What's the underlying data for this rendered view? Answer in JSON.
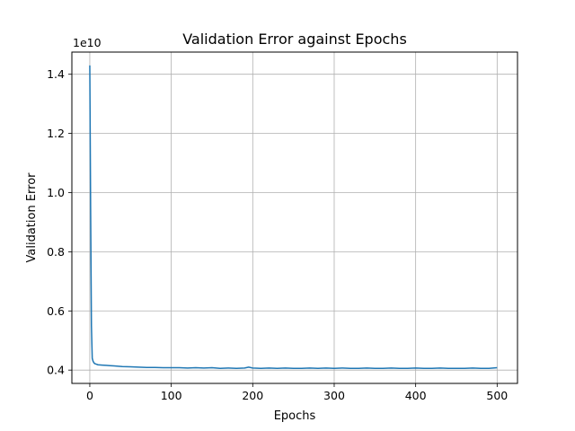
{
  "chart_data": {
    "type": "line",
    "title": "Validation Error against Epochs",
    "xlabel": "Epochs",
    "ylabel": "Validation Error",
    "y_offset_label": "1e10",
    "xlim": [
      -22,
      525
    ],
    "ylim": [
      3.55,
      14.75
    ],
    "x_ticks": [
      0,
      100,
      200,
      300,
      400,
      500
    ],
    "x_tick_labels": [
      "0",
      "100",
      "200",
      "300",
      "400",
      "500"
    ],
    "y_ticks": [
      4.0,
      6.0,
      8.0,
      10.0,
      12.0,
      14.0
    ],
    "y_tick_labels": [
      "0.4",
      "0.6",
      "0.8",
      "1.0",
      "1.2",
      "1.4"
    ],
    "grid": true,
    "series": [
      {
        "color": "#1f77b4",
        "x": [
          0,
          1,
          2,
          3,
          4,
          5,
          6,
          8,
          10,
          15,
          20,
          25,
          30,
          40,
          50,
          60,
          70,
          80,
          90,
          100,
          110,
          120,
          130,
          140,
          150,
          160,
          170,
          180,
          190,
          195,
          200,
          210,
          220,
          230,
          240,
          250,
          260,
          270,
          280,
          290,
          300,
          310,
          320,
          330,
          340,
          350,
          360,
          370,
          380,
          390,
          400,
          410,
          420,
          430,
          440,
          450,
          460,
          470,
          480,
          490,
          500
        ],
        "y": [
          14.3,
          9.5,
          5.5,
          4.4,
          4.3,
          4.25,
          4.22,
          4.2,
          4.18,
          4.17,
          4.16,
          4.15,
          4.14,
          4.12,
          4.11,
          4.1,
          4.09,
          4.09,
          4.08,
          4.08,
          4.08,
          4.07,
          4.08,
          4.07,
          4.08,
          4.06,
          4.07,
          4.06,
          4.07,
          4.1,
          4.07,
          4.06,
          4.07,
          4.06,
          4.07,
          4.06,
          4.06,
          4.07,
          4.06,
          4.07,
          4.06,
          4.07,
          4.06,
          4.06,
          4.07,
          4.06,
          4.06,
          4.07,
          4.06,
          4.06,
          4.07,
          4.06,
          4.06,
          4.07,
          4.06,
          4.06,
          4.06,
          4.07,
          4.06,
          4.06,
          4.08
        ]
      }
    ]
  }
}
